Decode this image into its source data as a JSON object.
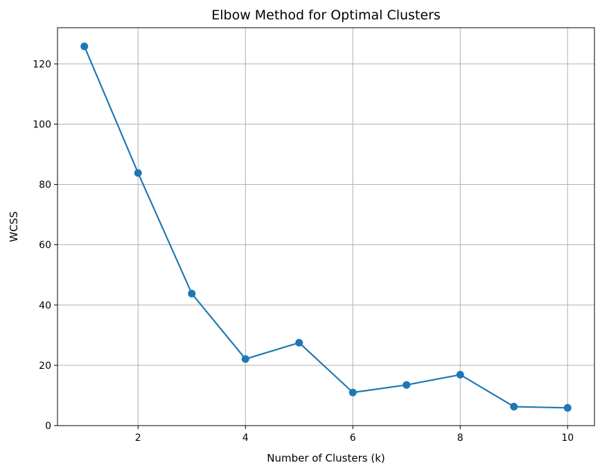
{
  "chart_data": {
    "type": "line",
    "title": "Elbow Method for Optimal Clusters",
    "xlabel": "Number of Clusters (k)",
    "ylabel": "WCSS",
    "xlim": [
      0.5,
      10.5
    ],
    "ylim": [
      0,
      132
    ],
    "xticks": [
      2,
      4,
      6,
      8,
      10
    ],
    "yticks": [
      0,
      20,
      40,
      60,
      80,
      100,
      120
    ],
    "grid": true,
    "marker": "circle",
    "color": "#1f77b4",
    "series": [
      {
        "x": [
          1,
          2,
          3,
          4,
          5,
          6,
          7,
          8,
          9,
          10
        ],
        "y": [
          125.8,
          83.8,
          43.8,
          22.1,
          27.5,
          11.0,
          13.5,
          16.9,
          6.3,
          5.9
        ]
      }
    ]
  }
}
